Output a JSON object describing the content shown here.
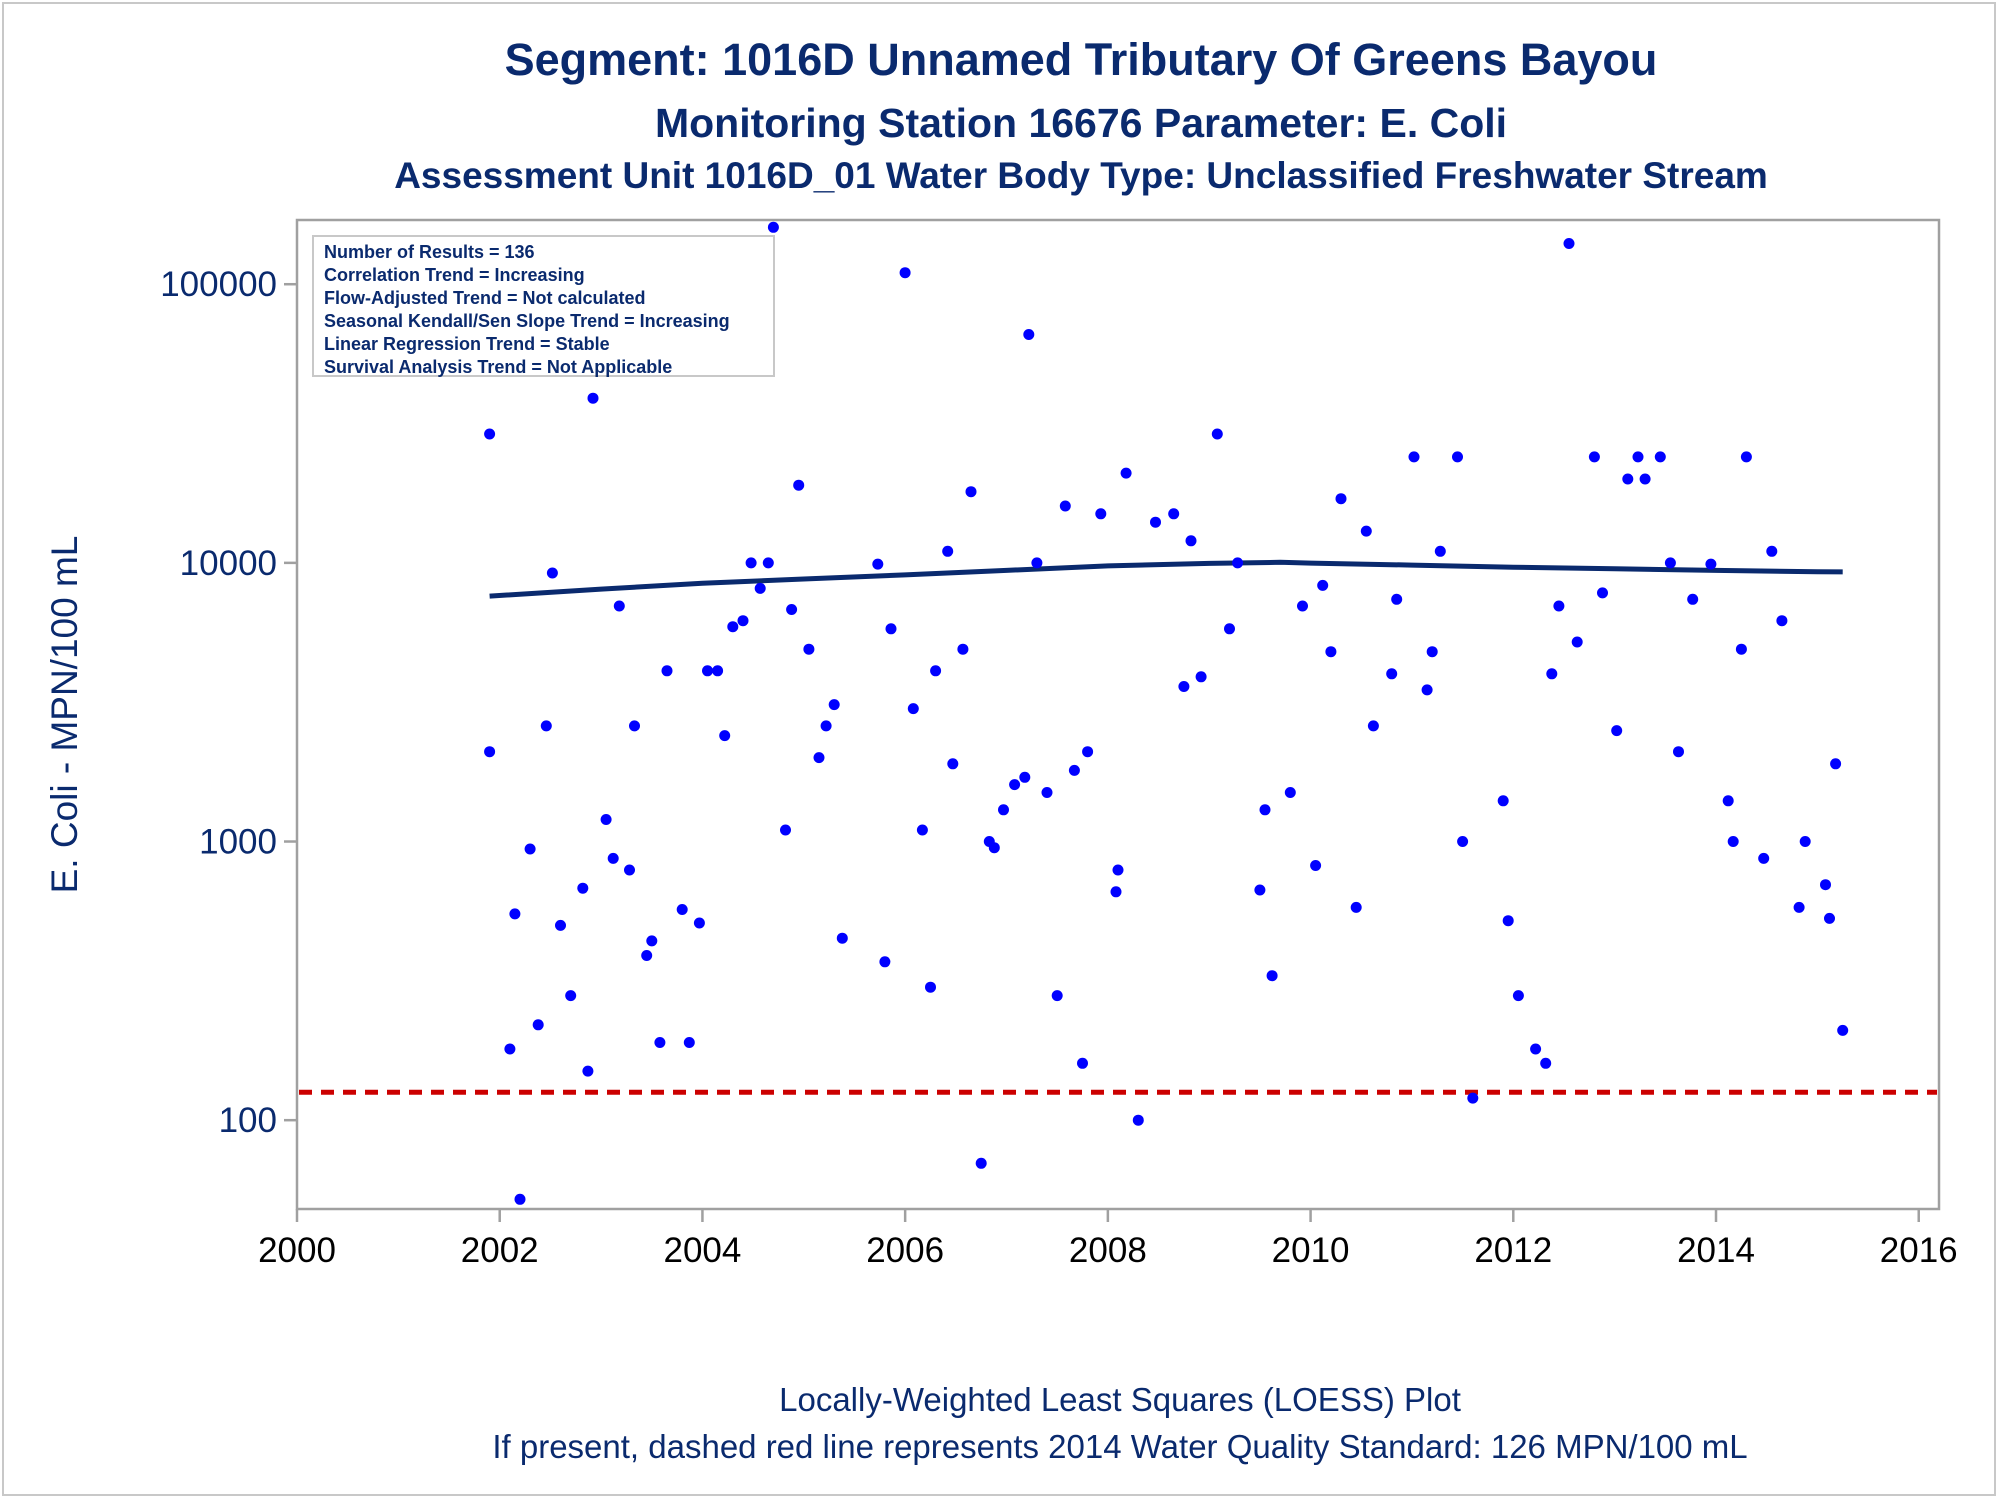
{
  "titles": {
    "line1": "Segment: 1016D  Unnamed Tributary Of Greens Bayou",
    "line2": "Monitoring Station 16676 Parameter: E. Coli",
    "line3": "Assessment Unit 1016D_01   Water Body Type: Unclassified Freshwater Stream"
  },
  "stats": [
    "Number of Results = 136",
    "Correlation Trend = Increasing",
    "Flow-Adjusted Trend = Not calculated",
    "Seasonal Kendall/Sen Slope Trend = Increasing",
    "Linear Regression Trend = Stable",
    "Survival Analysis Trend = Not Applicable"
  ],
  "footnotes": {
    "line1": "Locally-Weighted Least Squares (LOESS) Plot",
    "line2": "If present, dashed red line represents 2014 Water Quality Standard: 126 MPN/100 mL"
  },
  "chart_data": {
    "type": "scatter",
    "ylabel": "E. Coli - MPN/100 mL",
    "xlabel": "",
    "yscale": "log",
    "xlim": [
      2000,
      2016.2
    ],
    "ylim": [
      48,
      170000
    ],
    "xticks": [
      2000,
      2002,
      2004,
      2006,
      2008,
      2010,
      2012,
      2014,
      2016
    ],
    "xtick_labels": [
      "2000",
      "2002",
      "2004",
      "2006",
      "2008",
      "2010",
      "2012",
      "2014",
      "2016"
    ],
    "yticks": [
      100,
      1000,
      10000,
      100000
    ],
    "ytick_labels": [
      "100",
      "1000",
      "10000",
      "100000"
    ],
    "standard_line": {
      "value": 126,
      "color": "#cc0000",
      "style": "dashed"
    },
    "colors": {
      "points": "#0000ff",
      "loess": "#0a2a6e",
      "axis": "#a0a0a0",
      "text": "#0a2a6e"
    },
    "grid": false,
    "legend": "none",
    "series": [
      {
        "kind": "points",
        "x": [
          2001.9,
          2001.9,
          2002.1,
          2002.15,
          2002.2,
          2002.3,
          2002.38,
          2002.46,
          2002.52,
          2002.6,
          2002.7,
          2002.82,
          2002.87,
          2002.92,
          2003.05,
          2003.12,
          2003.18,
          2003.28,
          2003.33,
          2003.45,
          2003.5,
          2003.58,
          2003.65,
          2003.8,
          2003.87,
          2003.97,
          2004.05,
          2004.15,
          2004.22,
          2004.3,
          2004.4,
          2004.48,
          2004.57,
          2004.65,
          2004.7,
          2004.82,
          2004.88,
          2004.95,
          2005.05,
          2005.15,
          2005.22,
          2005.3,
          2005.38,
          2005.73,
          2005.8,
          2005.86,
          2006.0,
          2006.08,
          2006.17,
          2006.25,
          2006.3,
          2006.42,
          2006.47,
          2006.57,
          2006.65,
          2006.75,
          2006.83,
          2006.88,
          2006.97,
          2007.08,
          2007.18,
          2007.22,
          2007.3,
          2007.4,
          2007.5,
          2007.58,
          2007.67,
          2007.75,
          2007.8,
          2007.93,
          2008.08,
          2008.1,
          2008.18,
          2008.3,
          2008.47,
          2008.65,
          2008.75,
          2008.82,
          2008.92,
          2009.08,
          2009.2,
          2009.28,
          2009.5,
          2009.55,
          2009.62,
          2009.8,
          2009.92,
          2010.05,
          2010.12,
          2010.2,
          2010.3,
          2010.45,
          2010.55,
          2010.62,
          2010.8,
          2010.85,
          2011.02,
          2011.15,
          2011.2,
          2011.28,
          2011.45,
          2011.5,
          2011.6,
          2011.9,
          2011.95,
          2012.05,
          2012.22,
          2012.32,
          2012.38,
          2012.45,
          2012.55,
          2012.63,
          2012.8,
          2012.88,
          2013.02,
          2013.13,
          2013.23,
          2013.3,
          2013.45,
          2013.55,
          2013.63,
          2013.77,
          2013.95,
          2014.12,
          2014.17,
          2014.25,
          2014.3,
          2014.47,
          2014.55,
          2014.65,
          2014.82,
          2014.88,
          2015.08,
          2015.12,
          2015.18,
          2015.25
        ],
        "y": [
          29000,
          2100,
          180,
          550,
          52,
          940,
          220,
          2600,
          9200,
          500,
          280,
          680,
          150,
          39000,
          1200,
          870,
          7000,
          790,
          2600,
          390,
          440,
          190,
          4100,
          570,
          190,
          510,
          4100,
          4100,
          2400,
          5900,
          6200,
          10000,
          8100,
          10000,
          160000,
          1100,
          6800,
          19000,
          4900,
          2000,
          2600,
          3100,
          450,
          9900,
          370,
          5800,
          110000,
          3000,
          1100,
          300,
          4100,
          11000,
          1900,
          4900,
          18000,
          70,
          1000,
          950,
          1300,
          1600,
          1700,
          66000,
          10000,
          1500,
          280,
          16000,
          1800,
          160,
          2100,
          15000,
          660,
          790,
          21000,
          100,
          14000,
          15000,
          3600,
          12000,
          3900,
          29000,
          5800,
          10000,
          670,
          1300,
          330,
          1500,
          7000,
          820,
          8300,
          4800,
          17000,
          580,
          13000,
          2600,
          4000,
          7400,
          24000,
          3500,
          4800,
          11000,
          24000,
          1000,
          120,
          1400,
          520,
          280,
          180,
          160,
          4000,
          7000,
          140000,
          5200,
          24000,
          7800,
          2500,
          20000,
          24000,
          20000,
          24000,
          10000,
          2100,
          7400,
          9900,
          1400,
          1000,
          4900,
          24000,
          870,
          11000,
          6200,
          580,
          1000,
          700,
          530,
          1900,
          210
        ]
      },
      {
        "kind": "loess",
        "x": [
          2001.9,
          2003.0,
          2004.0,
          2005.0,
          2006.0,
          2007.0,
          2008.0,
          2009.0,
          2009.7,
          2010.0,
          2011.0,
          2012.0,
          2013.0,
          2014.0,
          2015.0,
          2015.25
        ],
        "y": [
          7600,
          8050,
          8450,
          8750,
          9050,
          9400,
          9750,
          9960,
          10050,
          9980,
          9820,
          9650,
          9520,
          9400,
          9300,
          9280
        ]
      }
    ]
  }
}
